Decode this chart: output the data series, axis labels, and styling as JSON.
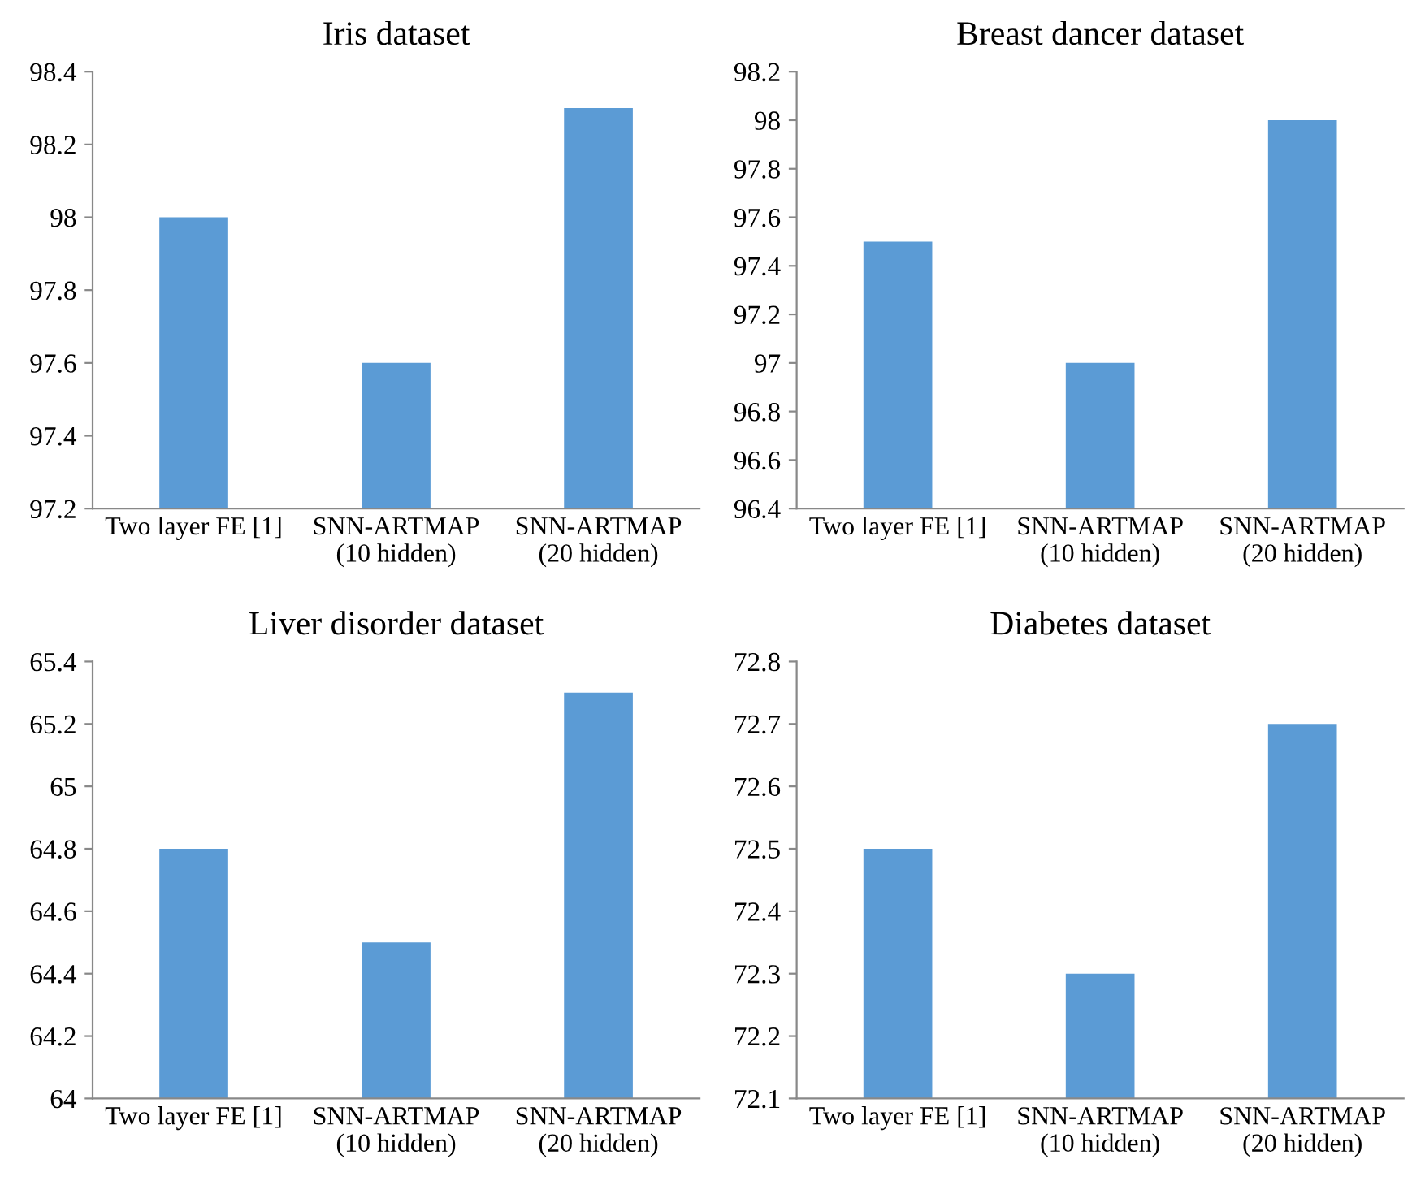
{
  "chart_data": [
    {
      "type": "bar",
      "title": "Iris dataset",
      "categories": [
        "Two layer FE [1]",
        "SNN-ARTMAP\n(10 hidden)",
        "SNN-ARTMAP\n(20 hidden)"
      ],
      "values": [
        98,
        97.6,
        98.3
      ],
      "color": "#5b9bd5",
      "ylim": [
        97.2,
        98.4
      ],
      "yticks": [
        97.2,
        97.4,
        97.6,
        97.8,
        98,
        98.2,
        98.4
      ],
      "grid": false,
      "legend": false
    },
    {
      "type": "bar",
      "title": "Breast dancer dataset",
      "categories": [
        "Two layer FE [1]",
        "SNN-ARTMAP\n(10 hidden)",
        "SNN-ARTMAP\n(20 hidden)"
      ],
      "values": [
        97.5,
        97,
        98
      ],
      "color": "#5b9bd5",
      "ylim": [
        96.4,
        98.2
      ],
      "yticks": [
        96.4,
        96.6,
        96.8,
        97,
        97.2,
        97.4,
        97.6,
        97.8,
        98,
        98.2
      ],
      "grid": false,
      "legend": false
    },
    {
      "type": "bar",
      "title": "Liver disorder dataset",
      "categories": [
        "Two layer FE [1]",
        "SNN-ARTMAP\n(10 hidden)",
        "SNN-ARTMAP\n(20 hidden)"
      ],
      "values": [
        64.8,
        64.5,
        65.3
      ],
      "color": "#5b9bd5",
      "ylim": [
        64,
        65.4
      ],
      "yticks": [
        64,
        64.2,
        64.4,
        64.6,
        64.8,
        65,
        65.2,
        65.4
      ],
      "grid": false,
      "legend": false
    },
    {
      "type": "bar",
      "title": "Diabetes dataset",
      "categories": [
        "Two layer FE [1]",
        "SNN-ARTMAP\n(10 hidden)",
        "SNN-ARTMAP\n(20 hidden)"
      ],
      "values": [
        72.5,
        72.3,
        72.7
      ],
      "color": "#5b9bd5",
      "ylim": [
        72.1,
        72.8
      ],
      "yticks": [
        72.1,
        72.2,
        72.3,
        72.4,
        72.5,
        72.6,
        72.7,
        72.8
      ],
      "grid": false,
      "legend": false
    }
  ]
}
